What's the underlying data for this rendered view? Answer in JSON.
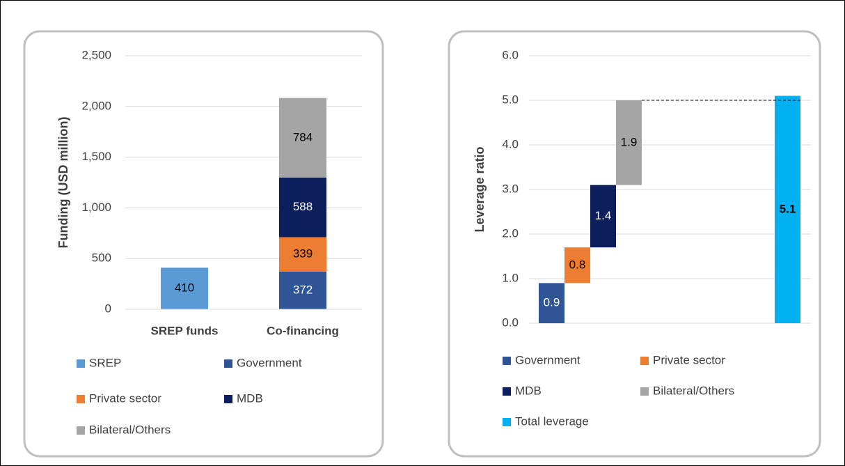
{
  "chart_data": [
    {
      "type": "stacked-bar",
      "ylabel": "Funding (USD million)",
      "categories": [
        "SREP funds",
        "Co-financing"
      ],
      "series": [
        {
          "name": "SREP",
          "color": "#5b9bd5",
          "label_color": "#000000",
          "values": [
            410,
            null
          ]
        },
        {
          "name": "Government",
          "color": "#2f5597",
          "label_color": "#ffffff",
          "values": [
            null,
            372
          ]
        },
        {
          "name": "Private sector",
          "color": "#ed7d31",
          "label_color": "#000000",
          "values": [
            null,
            339
          ]
        },
        {
          "name": "MDB",
          "color": "#0c1f5c",
          "label_color": "#ffffff",
          "values": [
            null,
            588
          ]
        },
        {
          "name": "Bilateral/Others",
          "color": "#a5a5a5",
          "label_color": "#000000",
          "values": [
            null,
            784
          ]
        }
      ],
      "ylim": [
        0,
        2500
      ],
      "yticks": [
        0,
        500,
        {
          "value": 1000,
          "label": "1,000"
        },
        {
          "value": 1500,
          "label": "1,500"
        },
        {
          "value": 2000,
          "label": "2,000"
        },
        {
          "value": 2500,
          "label": "2,500"
        }
      ],
      "grid": true
    },
    {
      "type": "waterfall",
      "ylabel": "Leverage ratio",
      "series": [
        {
          "name": "Government",
          "color": "#2f5597",
          "label_color": "#ffffff",
          "values": [
            0.9
          ]
        },
        {
          "name": "Private sector",
          "color": "#ed7d31",
          "label_color": "#000000",
          "values": [
            0.8
          ]
        },
        {
          "name": "MDB",
          "color": "#0c1f5c",
          "label_color": "#ffffff",
          "values": [
            1.4
          ]
        },
        {
          "name": "Bilateral/Others",
          "color": "#a5a5a5",
          "label_color": "#000000",
          "values": [
            1.9
          ]
        },
        {
          "name": "Total leverage",
          "color": "#00b0f0",
          "label_color": "#000000",
          "total": true,
          "values": [
            5.1
          ]
        }
      ],
      "ylim": [
        0,
        6
      ],
      "yticks": [
        {
          "value": 0,
          "label": "0.0"
        },
        {
          "value": 1,
          "label": "1.0"
        },
        {
          "value": 2,
          "label": "2.0"
        },
        {
          "value": 3,
          "label": "3.0"
        },
        {
          "value": 4,
          "label": "4.0"
        },
        {
          "value": 5,
          "label": "5.0"
        },
        {
          "value": 6,
          "label": "6.0"
        }
      ],
      "grid": true
    }
  ]
}
